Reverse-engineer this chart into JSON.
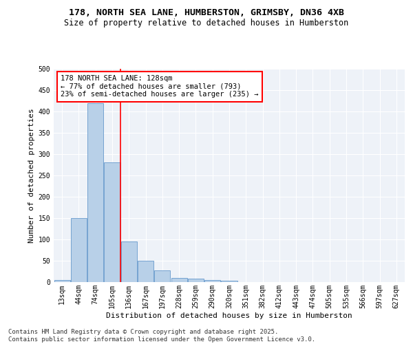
{
  "title_line1": "178, NORTH SEA LANE, HUMBERSTON, GRIMSBY, DN36 4XB",
  "title_line2": "Size of property relative to detached houses in Humberston",
  "xlabel": "Distribution of detached houses by size in Humberston",
  "ylabel": "Number of detached properties",
  "bar_labels": [
    "13sqm",
    "44sqm",
    "74sqm",
    "105sqm",
    "136sqm",
    "167sqm",
    "197sqm",
    "228sqm",
    "259sqm",
    "290sqm",
    "320sqm",
    "351sqm",
    "382sqm",
    "412sqm",
    "443sqm",
    "474sqm",
    "505sqm",
    "535sqm",
    "566sqm",
    "597sqm",
    "627sqm"
  ],
  "bar_values": [
    5,
    150,
    420,
    280,
    95,
    50,
    28,
    10,
    8,
    5,
    4,
    0,
    0,
    0,
    0,
    0,
    0,
    0,
    0,
    0,
    0
  ],
  "bar_color": "#b8d0e8",
  "bar_edgecolor": "#6699cc",
  "red_line_bin": 3,
  "annotation_title": "178 NORTH SEA LANE: 128sqm",
  "annotation_line2": "← 77% of detached houses are smaller (793)",
  "annotation_line3": "23% of semi-detached houses are larger (235) →",
  "ylim": [
    0,
    500
  ],
  "yticks": [
    0,
    50,
    100,
    150,
    200,
    250,
    300,
    350,
    400,
    450,
    500
  ],
  "bg_color": "#eef2f8",
  "footer_line1": "Contains HM Land Registry data © Crown copyright and database right 2025.",
  "footer_line2": "Contains public sector information licensed under the Open Government Licence v3.0.",
  "title_fontsize": 9.5,
  "subtitle_fontsize": 8.5,
  "axis_label_fontsize": 8,
  "tick_fontsize": 7,
  "annotation_fontsize": 7.5,
  "footer_fontsize": 6.5
}
